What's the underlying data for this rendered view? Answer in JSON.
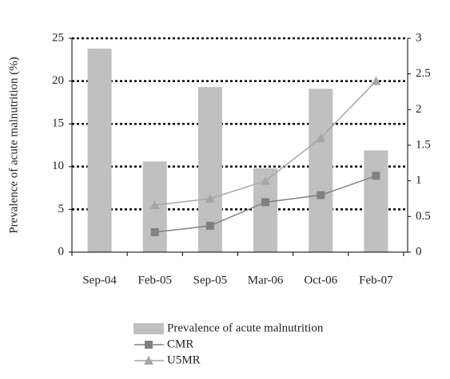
{
  "chart_data": {
    "type": "bar",
    "y_label": "Prevalence of acute malnutrition (%)",
    "categories": [
      "Sep-04",
      "Feb-05",
      "Sep-05",
      "Mar-06",
      "Oct-06",
      "Feb-07"
    ],
    "series": [
      {
        "name": "Prevalence of acute malnutrition",
        "type": "bar",
        "color": "#c0c0c0",
        "values": [
          23.8,
          10.6,
          19.3,
          9.8,
          19.1,
          11.9
        ]
      },
      {
        "name": "CMR",
        "type": "line",
        "marker": "square",
        "axis": "y2",
        "color": "#808080",
        "values": [
          null,
          0.28,
          0.37,
          0.7,
          0.8,
          1.07
        ]
      },
      {
        "name": "U5MR",
        "type": "line",
        "marker": "triangle",
        "axis": "y2",
        "color": "#a6a6a6",
        "values": [
          null,
          0.66,
          0.75,
          1.0,
          1.6,
          2.4
        ]
      }
    ],
    "ylim": [
      0,
      25
    ],
    "yticks": [
      0,
      5,
      10,
      15,
      20,
      25
    ],
    "y2lim": [
      0,
      3
    ],
    "y2ticks": [
      0,
      0.5,
      1,
      1.5,
      2,
      2.5,
      3
    ],
    "grid": true
  }
}
